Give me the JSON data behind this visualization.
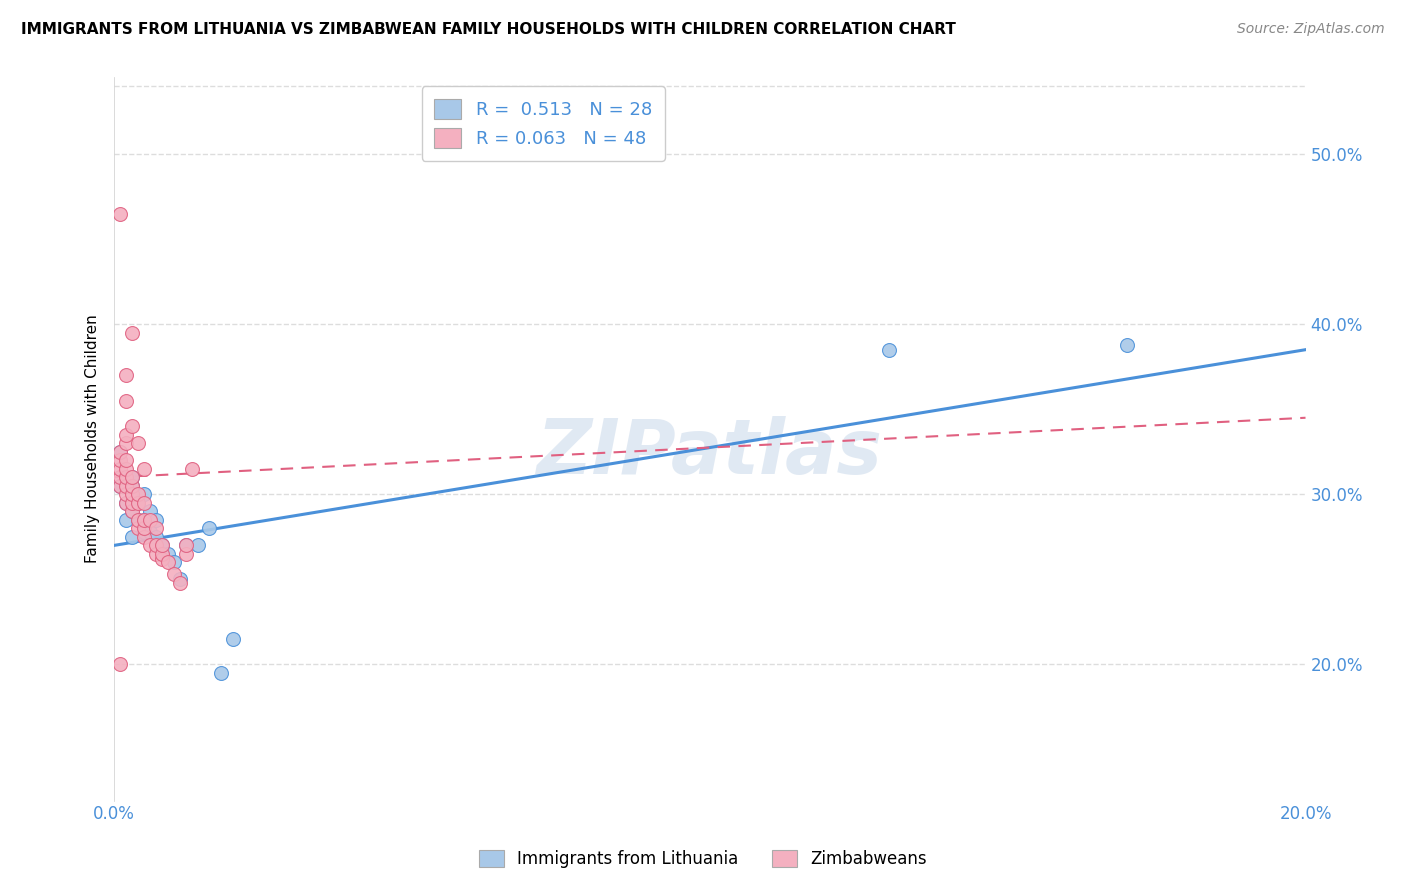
{
  "title": "IMMIGRANTS FROM LITHUANIA VS ZIMBABWEAN FAMILY HOUSEHOLDS WITH CHILDREN CORRELATION CHART",
  "source": "Source: ZipAtlas.com",
  "ylabel": "Family Households with Children",
  "legend_label1": "Immigrants from Lithuania",
  "legend_label2": "Zimbabweans",
  "R1": 0.513,
  "N1": 28,
  "R2": 0.063,
  "N2": 48,
  "xlim": [
    0.0,
    0.2
  ],
  "ylim": [
    0.12,
    0.545
  ],
  "xticks": [
    0.0,
    0.04,
    0.08,
    0.12,
    0.16,
    0.2
  ],
  "xticklabels": [
    "0.0%",
    "",
    "",
    "",
    "",
    "20.0%"
  ],
  "yticks": [
    0.2,
    0.3,
    0.4,
    0.5
  ],
  "yticklabels": [
    "20.0%",
    "30.0%",
    "40.0%",
    "50.0%"
  ],
  "color_blue": "#a8c8e8",
  "color_pink": "#f4b0c0",
  "line_blue": "#4a90d9",
  "line_pink": "#e06080",
  "blue_line_x0": 0.0,
  "blue_line_y0": 0.27,
  "blue_line_x1": 0.2,
  "blue_line_y1": 0.385,
  "pink_line_x0": 0.0,
  "pink_line_y0": 0.31,
  "pink_line_x1": 0.2,
  "pink_line_y1": 0.345,
  "scatter_blue_x": [
    0.001,
    0.001,
    0.002,
    0.002,
    0.003,
    0.003,
    0.003,
    0.004,
    0.004,
    0.005,
    0.005,
    0.005,
    0.006,
    0.006,
    0.007,
    0.007,
    0.008,
    0.009,
    0.01,
    0.011,
    0.012,
    0.014,
    0.016,
    0.018,
    0.02,
    0.13,
    0.17,
    0.003
  ],
  "scatter_blue_y": [
    0.305,
    0.325,
    0.285,
    0.295,
    0.275,
    0.29,
    0.305,
    0.285,
    0.295,
    0.278,
    0.285,
    0.3,
    0.278,
    0.29,
    0.275,
    0.285,
    0.27,
    0.265,
    0.26,
    0.25,
    0.27,
    0.27,
    0.28,
    0.195,
    0.215,
    0.385,
    0.388,
    0.31
  ],
  "scatter_pink_x": [
    0.001,
    0.001,
    0.001,
    0.001,
    0.001,
    0.001,
    0.002,
    0.002,
    0.002,
    0.002,
    0.002,
    0.002,
    0.002,
    0.002,
    0.002,
    0.002,
    0.003,
    0.003,
    0.003,
    0.003,
    0.003,
    0.003,
    0.004,
    0.004,
    0.004,
    0.004,
    0.004,
    0.005,
    0.005,
    0.005,
    0.005,
    0.005,
    0.006,
    0.006,
    0.007,
    0.007,
    0.007,
    0.008,
    0.008,
    0.008,
    0.009,
    0.01,
    0.011,
    0.012,
    0.012,
    0.013,
    0.003,
    0.001
  ],
  "scatter_pink_y": [
    0.305,
    0.31,
    0.315,
    0.32,
    0.325,
    0.465,
    0.295,
    0.3,
    0.305,
    0.31,
    0.315,
    0.32,
    0.33,
    0.335,
    0.355,
    0.37,
    0.29,
    0.295,
    0.3,
    0.305,
    0.31,
    0.34,
    0.28,
    0.285,
    0.295,
    0.3,
    0.33,
    0.275,
    0.28,
    0.285,
    0.295,
    0.315,
    0.27,
    0.285,
    0.265,
    0.27,
    0.28,
    0.262,
    0.265,
    0.27,
    0.26,
    0.253,
    0.248,
    0.265,
    0.27,
    0.315,
    0.395,
    0.2
  ],
  "watermark": "ZIPatlas",
  "background_color": "#ffffff",
  "grid_color": "#dddddd"
}
